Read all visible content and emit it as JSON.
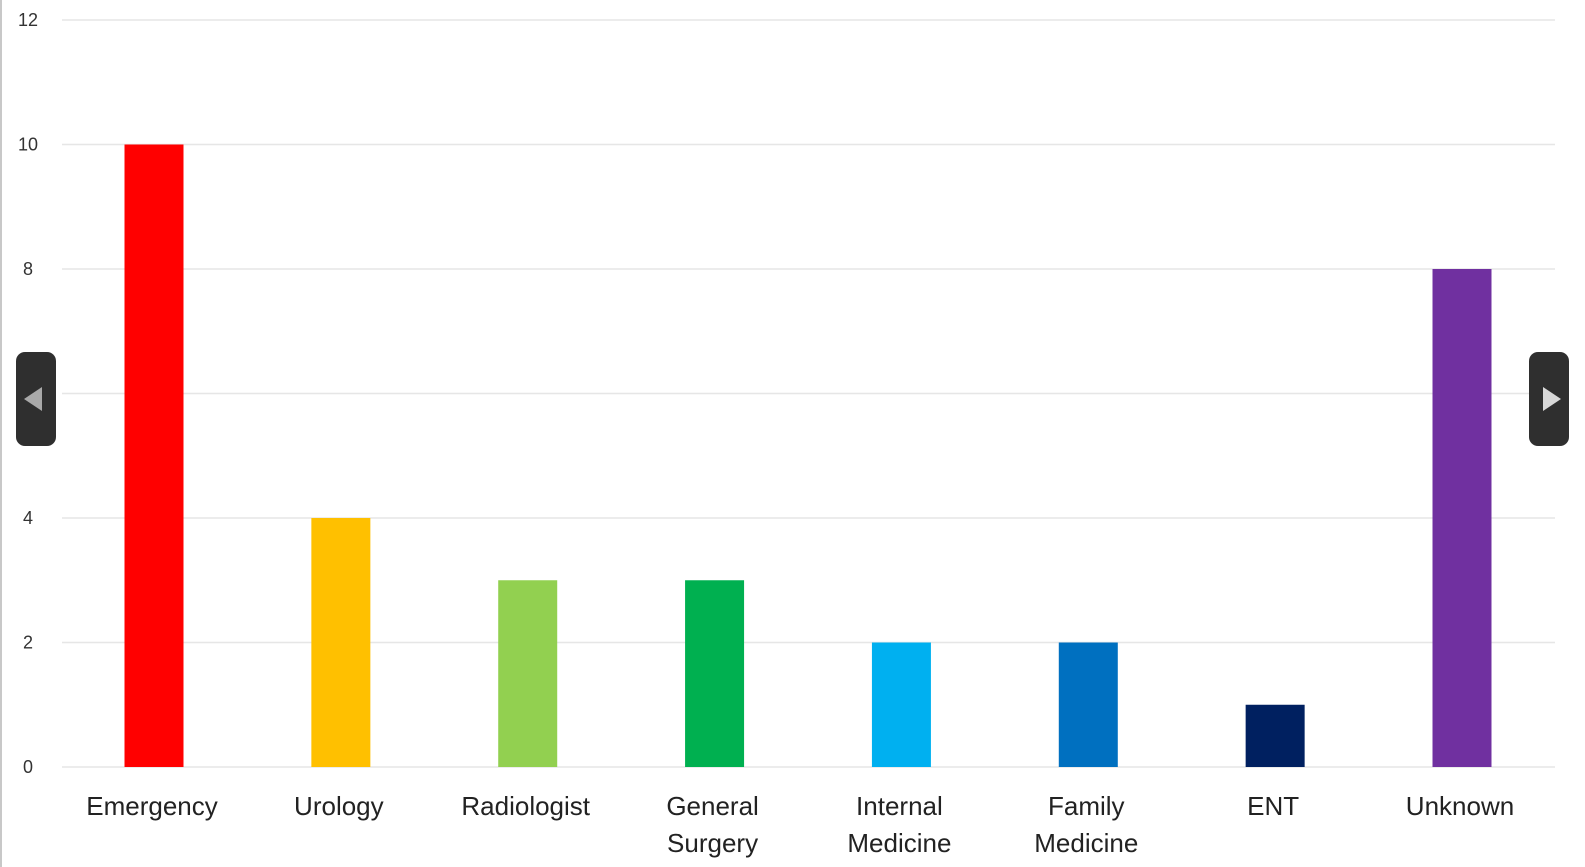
{
  "chart_data": {
    "type": "bar",
    "categories": [
      [
        "Emergency"
      ],
      [
        "Urology"
      ],
      [
        "Radiologist"
      ],
      [
        "General",
        "Surgery"
      ],
      [
        "Internal",
        "Medicine"
      ],
      [
        "Family",
        "Medicine"
      ],
      [
        "ENT"
      ],
      [
        "Unknown"
      ]
    ],
    "values": [
      10,
      4,
      3,
      3,
      2,
      2,
      1,
      8
    ],
    "colors": [
      "#ff0000",
      "#ffc000",
      "#92d050",
      "#00b050",
      "#00b0f0",
      "#0070c0",
      "#002060",
      "#7030a0"
    ],
    "yticks": [
      "0",
      "2",
      "4",
      "",
      "8",
      "10",
      "12"
    ],
    "ylim": [
      0,
      12
    ],
    "grid": true,
    "title": "",
    "xlabel": "",
    "ylabel": ""
  },
  "controls": {
    "prev_icon": "triangle-left-icon",
    "next_icon": "triangle-right-icon"
  }
}
